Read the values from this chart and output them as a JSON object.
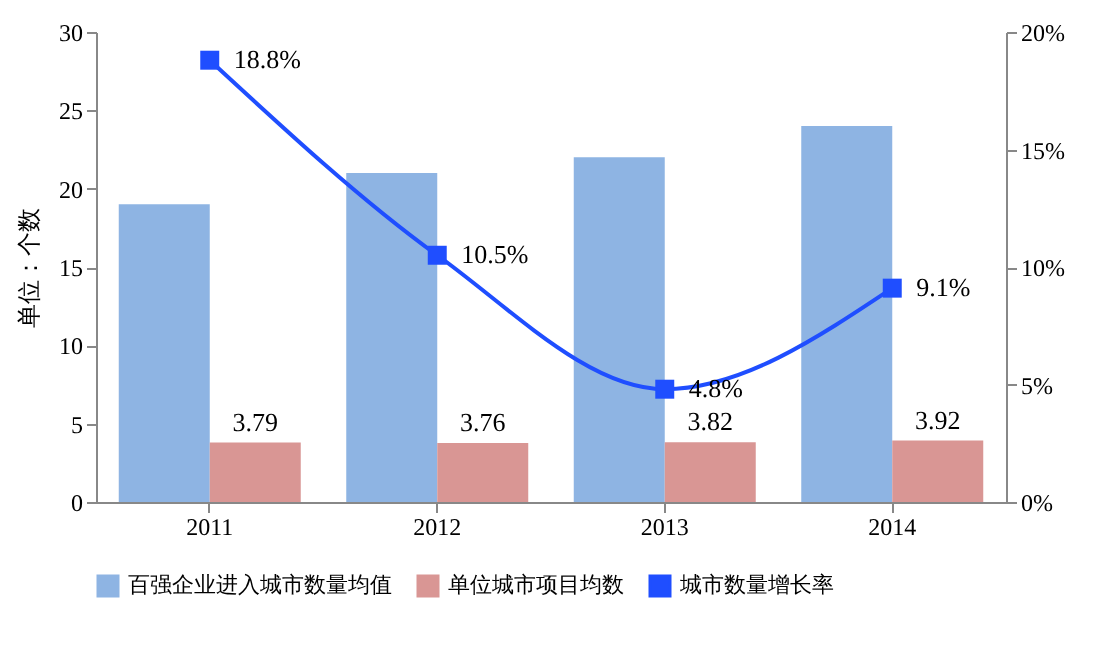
{
  "chart_data": {
    "type": "bar",
    "ylabel": "单位：个数",
    "categories": [
      "2011",
      "2012",
      "2013",
      "2014"
    ],
    "series": [
      {
        "name": "百强企业进入城市数量均值",
        "color": "#8eb4e3",
        "values": [
          19,
          21,
          22,
          24
        ]
      },
      {
        "name": "单位城市项目均数",
        "color": "#d99694",
        "values": [
          3.79,
          3.76,
          3.82,
          3.92
        ],
        "value_labels": [
          "3.79",
          "3.76",
          "3.82",
          "3.92"
        ]
      },
      {
        "name": "城市数量增长率",
        "type": "line",
        "axis": "y2",
        "color": "#1f4eff",
        "values": [
          18.8,
          10.5,
          4.8,
          9.1
        ],
        "value_labels": [
          "18.8%",
          "10.5%",
          "4.8%",
          "9.1%"
        ]
      }
    ],
    "ylim": [
      0,
      30
    ],
    "yticks": [
      0,
      5,
      10,
      15,
      20,
      25,
      30
    ],
    "y2lim": [
      0,
      20
    ],
    "y2ticks": [
      {
        "value": 0,
        "label": "0%"
      },
      {
        "value": 5,
        "label": "5%"
      },
      {
        "value": 10,
        "label": "10%"
      },
      {
        "value": 15,
        "label": "15%"
      },
      {
        "value": 20,
        "label": "20%"
      }
    ],
    "marker": "square",
    "grid": false,
    "legend": "bottom"
  }
}
